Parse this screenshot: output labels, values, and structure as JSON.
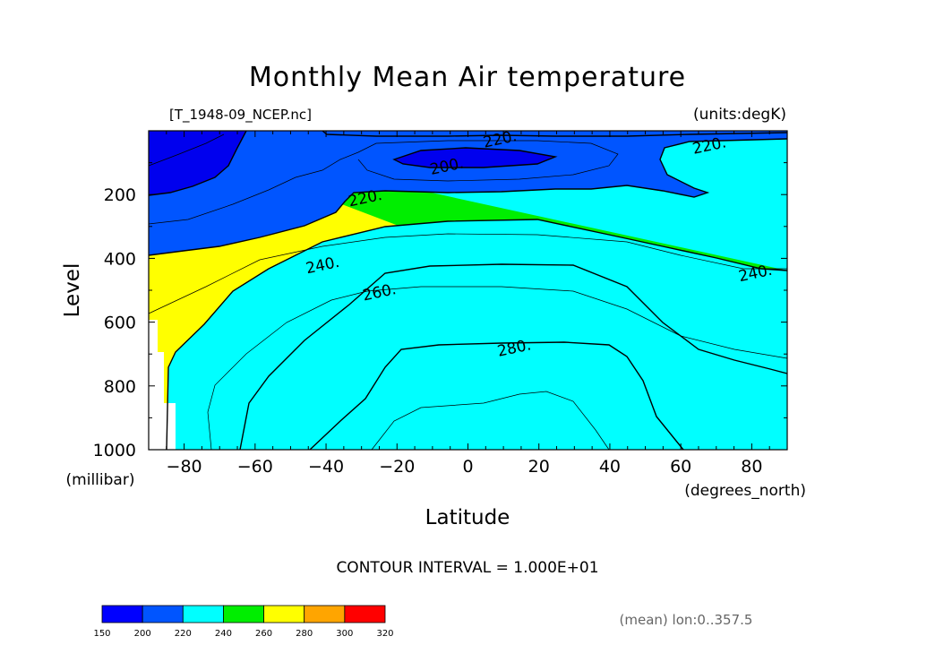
{
  "chart_data": {
    "type": "contour",
    "title": "Monthly Mean Air temperature",
    "source_file": "[T_1948-09_NCEP.nc]",
    "units": "(units:degK)",
    "xlabel": "Latitude",
    "x_units": "(degrees_north)",
    "ylabel": "Level",
    "y_units": "(millibar)",
    "x_ticks": [
      "-80",
      "-60",
      "-40",
      "-20",
      "0",
      "20",
      "40",
      "60",
      "80"
    ],
    "x_tick_values": [
      -80,
      -60,
      -40,
      -20,
      0,
      20,
      40,
      60,
      80
    ],
    "y_ticks": [
      "200",
      "400",
      "600",
      "800",
      "1000"
    ],
    "y_tick_values": [
      200,
      400,
      600,
      800,
      1000
    ],
    "xlim": [
      -90,
      90
    ],
    "ylim": [
      0,
      1000
    ],
    "y_inverted": true,
    "contour_labels": [
      {
        "text": "220.",
        "lat": 9,
        "p": 25
      },
      {
        "text": "220.",
        "lat": 68,
        "p": 45
      },
      {
        "text": "200.",
        "lat": -6,
        "p": 110
      },
      {
        "text": "220.",
        "lat": -29,
        "p": 210
      },
      {
        "text": "240.",
        "lat": -41,
        "p": 420
      },
      {
        "text": "240.",
        "lat": 81,
        "p": 445
      },
      {
        "text": "260.",
        "lat": -25,
        "p": 505
      },
      {
        "text": "280.",
        "lat": 13,
        "p": 680
      }
    ],
    "contour_interval_text": "CONTOUR INTERVAL = 1.000E+01",
    "colorbar": {
      "levels": [
        "150",
        "200",
        "220",
        "240",
        "260",
        "280",
        "300",
        "320"
      ],
      "colors": [
        "#0000ff",
        "#0055ff",
        "#00ffff",
        "#00ee00",
        "#ffff00",
        "#ffa500",
        "#ff0000"
      ]
    },
    "mean_note": "(mean) lon:0..357.5"
  }
}
